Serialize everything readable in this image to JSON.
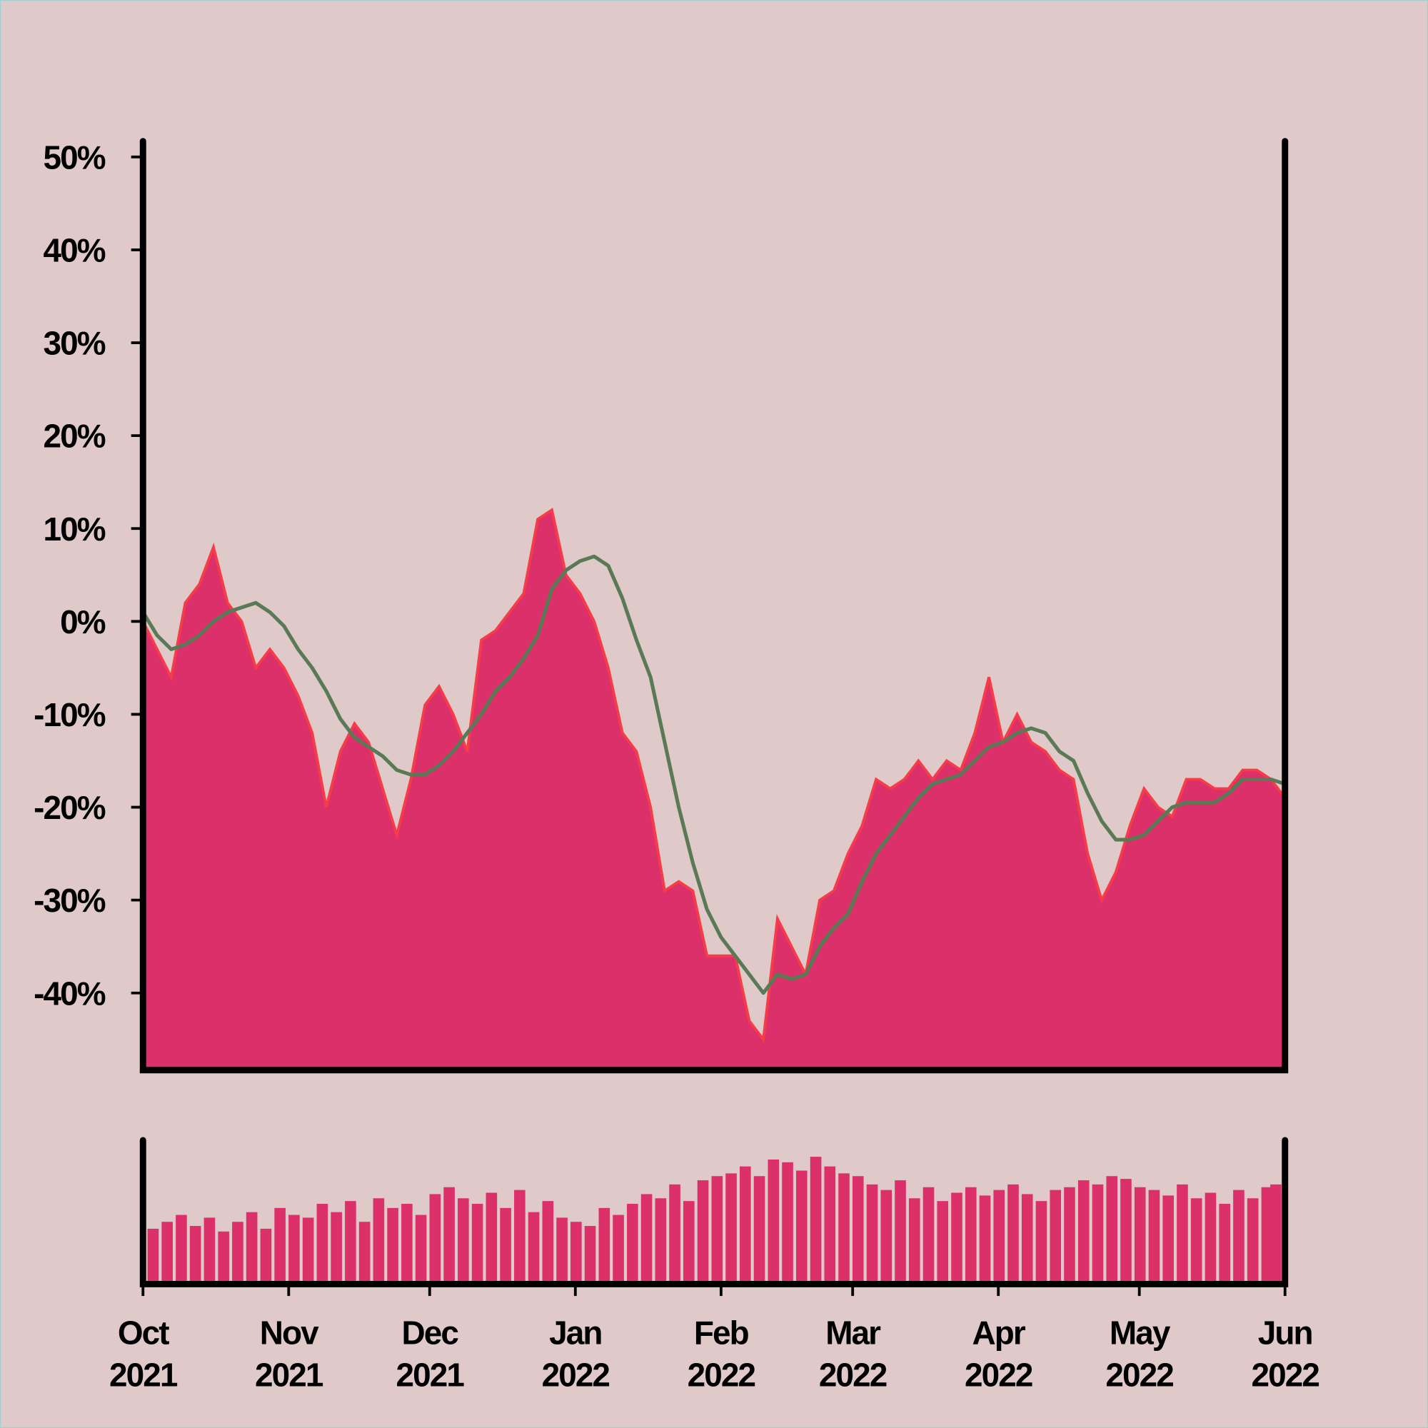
{
  "chart_data": [
    {
      "type": "area",
      "x": [
        "2021-10-01",
        "2021-10-04",
        "2021-10-07",
        "2021-10-10",
        "2021-10-13",
        "2021-10-16",
        "2021-10-19",
        "2021-10-22",
        "2021-10-25",
        "2021-10-28",
        "2021-10-31",
        "2021-11-03",
        "2021-11-06",
        "2021-11-09",
        "2021-11-12",
        "2021-11-15",
        "2021-11-18",
        "2021-11-21",
        "2021-11-24",
        "2021-11-27",
        "2021-11-30",
        "2021-12-03",
        "2021-12-06",
        "2021-12-09",
        "2021-12-12",
        "2021-12-15",
        "2021-12-18",
        "2021-12-21",
        "2021-12-24",
        "2021-12-27",
        "2021-12-30",
        "2022-01-02",
        "2022-01-05",
        "2022-01-08",
        "2022-01-11",
        "2022-01-14",
        "2022-01-17",
        "2022-01-20",
        "2022-01-23",
        "2022-01-26",
        "2022-01-29",
        "2022-02-01",
        "2022-02-04",
        "2022-02-07",
        "2022-02-10",
        "2022-02-13",
        "2022-02-16",
        "2022-02-19",
        "2022-02-22",
        "2022-02-25",
        "2022-02-28",
        "2022-03-03",
        "2022-03-06",
        "2022-03-09",
        "2022-03-12",
        "2022-03-15",
        "2022-03-18",
        "2022-03-21",
        "2022-03-24",
        "2022-03-27",
        "2022-03-30",
        "2022-04-02",
        "2022-04-05",
        "2022-04-08",
        "2022-04-11",
        "2022-04-14",
        "2022-04-17",
        "2022-04-20",
        "2022-04-23",
        "2022-04-26",
        "2022-04-29",
        "2022-05-02",
        "2022-05-05",
        "2022-05-08",
        "2022-05-11",
        "2022-05-14",
        "2022-05-17",
        "2022-05-20",
        "2022-05-23",
        "2022-05-26",
        "2022-05-29",
        "2022-06-01"
      ],
      "series": [
        {
          "color": "#dc306a",
          "edge": "#f53c48",
          "values": [
            0,
            -3,
            -6,
            2,
            4,
            8,
            2,
            0,
            -5,
            -3,
            -5,
            -8,
            -12,
            -20,
            -14,
            -11,
            -13,
            -18,
            -23,
            -17,
            -9,
            -7,
            -10,
            -14,
            -2,
            -1,
            1,
            3,
            11,
            12,
            5,
            3,
            0,
            -5,
            -12,
            -14,
            -20,
            -29,
            -28,
            -29,
            -36,
            -36,
            -36,
            -43,
            -45,
            -32,
            -35,
            -38,
            -30,
            -29,
            -25,
            -22,
            -17,
            -18,
            -17,
            -15,
            -17,
            -15,
            -16,
            -12,
            -6,
            -13,
            -10,
            -13,
            -14,
            -16,
            -17,
            -25,
            -30,
            -27,
            -22,
            -18,
            -20,
            -21,
            -17,
            -17,
            -18,
            -18,
            -16,
            -16,
            -17,
            -19
          ]
        },
        {
          "color": "#5a7a55",
          "values": [
            1,
            -1.5,
            -3,
            -2.5,
            -1.5,
            0,
            1,
            1.5,
            2,
            1,
            -0.5,
            -3,
            -5,
            -7.5,
            -10.5,
            -12.5,
            -13.5,
            -14.5,
            -16,
            -16.5,
            -16.5,
            -15.5,
            -14,
            -12,
            -10,
            -7.5,
            -6,
            -4,
            -1.5,
            3.5,
            5.5,
            6.5,
            7,
            6,
            2.5,
            -2,
            -6,
            -13,
            -20,
            -26,
            -31,
            -34,
            -36,
            -38,
            -40,
            -38,
            -38.5,
            -38,
            -35,
            -33,
            -31.5,
            -28,
            -25,
            -23,
            -21,
            -19,
            -17.5,
            -17,
            -16.5,
            -15,
            -13.5,
            -13,
            -12,
            -11.5,
            -12,
            -14,
            -15,
            -18.5,
            -21.5,
            -23.5,
            -23.5,
            -23,
            -21.5,
            -20,
            -19.5,
            -19.5,
            -19.5,
            -18.5,
            -17,
            -17,
            -17,
            -17.5
          ]
        }
      ],
      "xlim": [
        "2021-10-01",
        "2022-06-01"
      ],
      "ylim": [
        -48.3,
        51.7
      ],
      "yticks": [
        {
          "value": 50,
          "label": "50%"
        },
        {
          "value": 40,
          "label": "40%"
        },
        {
          "value": 30,
          "label": "30%"
        },
        {
          "value": 20,
          "label": "20%"
        },
        {
          "value": 10,
          "label": "10%"
        },
        {
          "value": 0,
          "label": "0%"
        },
        {
          "value": -10,
          "label": "-10%"
        },
        {
          "value": -20,
          "label": "-20%"
        },
        {
          "value": -30,
          "label": "-30%"
        },
        {
          "value": -40,
          "label": "-40%"
        }
      ]
    },
    {
      "type": "bar",
      "values": [
        40,
        45,
        50,
        42,
        48,
        38,
        45,
        52,
        40,
        55,
        50,
        48,
        58,
        52,
        60,
        45,
        62,
        55,
        58,
        50,
        65,
        70,
        62,
        58,
        66,
        55,
        68,
        52,
        60,
        48,
        45,
        42,
        55,
        50,
        58,
        65,
        62,
        72,
        60,
        75,
        78,
        80,
        85,
        78,
        90,
        88,
        82,
        92,
        85,
        80,
        78,
        72,
        68,
        75,
        62,
        70,
        60,
        66,
        70,
        64,
        68,
        72,
        65,
        60,
        68,
        70,
        75,
        72,
        78,
        76,
        70,
        68,
        64,
        72,
        62,
        66,
        58,
        68,
        62,
        70,
        66,
        72
      ],
      "color": "#dc306a",
      "ylim": [
        0,
        100
      ],
      "xticks": [
        {
          "value": "2021-10-01",
          "label": "Oct 2021"
        },
        {
          "value": "2021-11-01",
          "label": "Nov 2021"
        },
        {
          "value": "2021-12-01",
          "label": "Dec 2021"
        },
        {
          "value": "2022-01-01",
          "label": "Jan 2022"
        },
        {
          "value": "2022-02-01",
          "label": "Feb 2022"
        },
        {
          "value": "2022-03-01",
          "label": "Mar 2022"
        },
        {
          "value": "2022-04-01",
          "label": "Apr 2022"
        },
        {
          "value": "2022-05-01",
          "label": "May 2022"
        },
        {
          "value": "2022-06-01",
          "label": "Jun 2022"
        }
      ]
    }
  ]
}
